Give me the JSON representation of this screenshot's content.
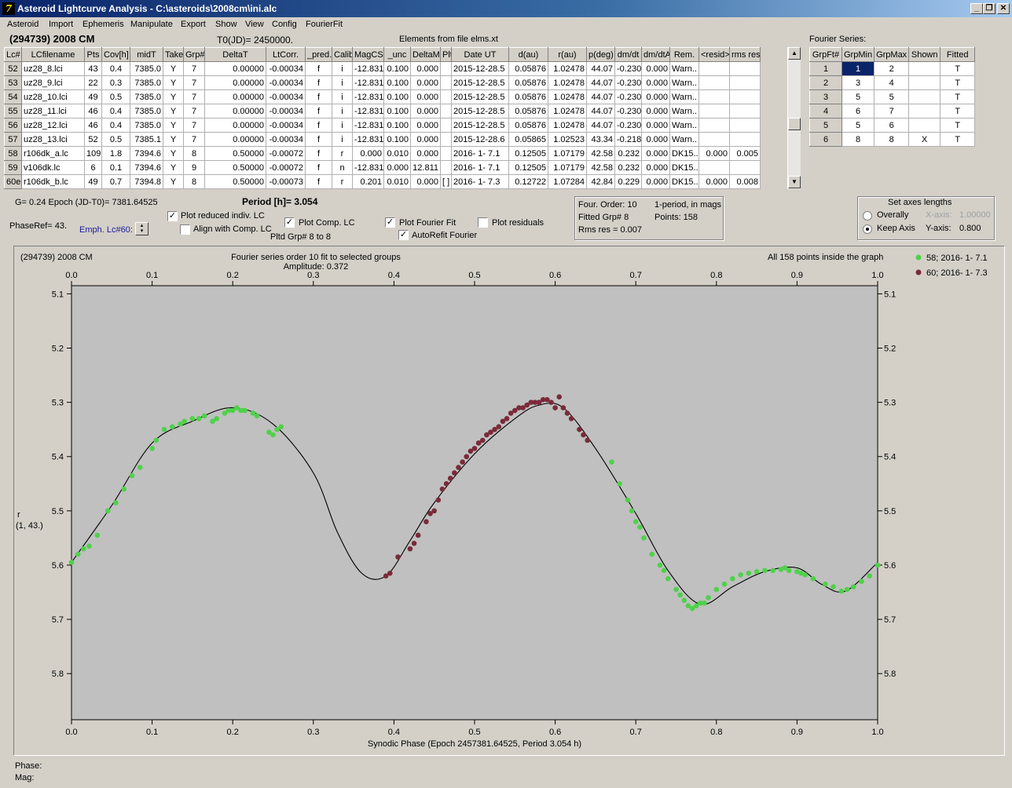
{
  "titlebar": {
    "title": "Asteroid Lightcurve Analysis - C:\\asteroids\\2008cm\\ini.alc",
    "min": "_",
    "max": "❐",
    "close": "✕"
  },
  "menu": [
    "Asteroid",
    "Import",
    "Ephemeris",
    "Manipulate",
    "Export",
    "Show",
    "View",
    "Config",
    "FourierFit"
  ],
  "header": {
    "asteroid": "(294739) 2008 CM",
    "t0": "T0(JD)= 2450000.",
    "elements": "Elements from file elms.xt",
    "fourier_series": "Fourier Series:"
  },
  "lc_table": {
    "columns": [
      "Lc#",
      "LCfilename",
      "Pts",
      "Cov[h]",
      "midT",
      "Take",
      "Grp#",
      "DeltaT",
      "LtCorr.",
      "_pred.",
      "Calib.",
      "MagCS",
      "_unc",
      "DeltaM",
      "Plt",
      "Date UT",
      "d(au)",
      "r(au)",
      "p(deg)",
      "dm/dt",
      "dm/dtA",
      "Rem.",
      "<resid>",
      "rms res"
    ],
    "rows": [
      [
        "52",
        "uz28_8.lci",
        "43",
        "0.4",
        "7385.0",
        "Y",
        "7",
        "0.00000",
        "-0.00034",
        "f",
        "i",
        "-12.831",
        "0.100",
        "0.000",
        "",
        "2015-12-28.5",
        "0.05876",
        "1.02478",
        "44.07",
        "-0.230",
        "0.000",
        "Warn..",
        "",
        ""
      ],
      [
        "53",
        "uz28_9.lci",
        "22",
        "0.3",
        "7385.0",
        "Y",
        "7",
        "0.00000",
        "-0.00034",
        "f",
        "i",
        "-12.831",
        "0.100",
        "0.000",
        "",
        "2015-12-28.5",
        "0.05876",
        "1.02478",
        "44.07",
        "-0.230",
        "0.000",
        "Warn..",
        "",
        ""
      ],
      [
        "54",
        "uz28_10.lci",
        "49",
        "0.5",
        "7385.0",
        "Y",
        "7",
        "0.00000",
        "-0.00034",
        "f",
        "i",
        "-12.831",
        "0.100",
        "0.000",
        "",
        "2015-12-28.5",
        "0.05876",
        "1.02478",
        "44.07",
        "-0.230",
        "0.000",
        "Warn..",
        "",
        ""
      ],
      [
        "55",
        "uz28_11.lci",
        "46",
        "0.4",
        "7385.0",
        "Y",
        "7",
        "0.00000",
        "-0.00034",
        "f",
        "i",
        "-12.831",
        "0.100",
        "0.000",
        "",
        "2015-12-28.5",
        "0.05876",
        "1.02478",
        "44.07",
        "-0.230",
        "0.000",
        "Warn..",
        "",
        ""
      ],
      [
        "56",
        "uz28_12.lci",
        "46",
        "0.4",
        "7385.0",
        "Y",
        "7",
        "0.00000",
        "-0.00034",
        "f",
        "i",
        "-12.831",
        "0.100",
        "0.000",
        "",
        "2015-12-28.5",
        "0.05876",
        "1.02478",
        "44.07",
        "-0.230",
        "0.000",
        "Warn..",
        "",
        ""
      ],
      [
        "57",
        "uz28_13.lci",
        "52",
        "0.5",
        "7385.1",
        "Y",
        "7",
        "0.00000",
        "-0.00034",
        "f",
        "i",
        "-12.831",
        "0.100",
        "0.000",
        "",
        "2015-12-28.6",
        "0.05865",
        "1.02523",
        "43.34",
        "-0.218",
        "0.000",
        "Warn..",
        "",
        ""
      ],
      [
        "58",
        "r106dk_a.lc",
        "109",
        "1.8",
        "7394.6",
        "Y",
        "8",
        "0.50000",
        "-0.00072",
        "f",
        "r",
        "0.000",
        "0.010",
        "0.000",
        "",
        "2016- 1- 7.1",
        "0.12505",
        "1.07179",
        "42.58",
        "0.232",
        "0.000",
        "DK15..",
        "0.000",
        "0.005"
      ],
      [
        "59",
        "v106dk.lc",
        "6",
        "0.1",
        "7394.6",
        "Y",
        "9",
        "0.50000",
        "-0.00072",
        "f",
        "n",
        "-12.831",
        "0.000",
        "12.811",
        "",
        "2016- 1- 7.1",
        "0.12505",
        "1.07179",
        "42.58",
        "0.232",
        "0.000",
        "DK15..",
        "",
        ""
      ],
      [
        "60e",
        "r106dk_b.lc",
        "49",
        "0.7",
        "7394.8",
        "Y",
        "8",
        "0.50000",
        "-0.00073",
        "f",
        "r",
        "0.201",
        "0.010",
        "0.000",
        "[ ]",
        "2016- 1- 7.3",
        "0.12722",
        "1.07284",
        "42.84",
        "0.229",
        "0.000",
        "DK15..",
        "0.000",
        "0.008"
      ]
    ]
  },
  "fourier_table": {
    "columns": [
      "GrpFt#",
      "GrpMin",
      "GrpMax",
      "Shown",
      "Fitted"
    ],
    "rows": [
      [
        "1",
        "1",
        "2",
        "",
        "T"
      ],
      [
        "2",
        "3",
        "4",
        "",
        "T"
      ],
      [
        "3",
        "5",
        "5",
        "",
        "T"
      ],
      [
        "4",
        "6",
        "7",
        "",
        "T"
      ],
      [
        "5",
        "5",
        "6",
        "",
        "T"
      ],
      [
        "6",
        "8",
        "8",
        "X",
        "T"
      ]
    ]
  },
  "controls": {
    "g_epoch": "G= 0.24   Epoch (JD-T0)= 7381.64525",
    "period": "Period [h]= 3.054",
    "phase_ref": "PhaseRef= 43.",
    "emph_lc": "Emph. Lc#60:",
    "plot_reduced": "Plot reduced indiv. LC",
    "align_comp": "Align with Comp. LC",
    "plot_comp": "Plot Comp. LC",
    "pltd_grp": "Pltd Grp#  8  to  8",
    "plot_fourier": "Plot Fourier Fit",
    "autorefit": "AutoRefit Fourier",
    "plot_residuals": "Plot residuals",
    "info_order": "Four. Order: 10",
    "info_period": "1-period, in mags",
    "info_fitted": "Fitted Grp# 8",
    "info_points": "Points: 158",
    "info_rms": "Rms res    = 0.007",
    "axes_title": "Set axes lengths",
    "overally": "Overally",
    "keep_axis": "Keep Axis",
    "xaxis_label": "X-axis:",
    "xaxis_value": "1.00000",
    "yaxis_label": "Y-axis:",
    "yaxis_value": "0.800",
    "check": "✓"
  },
  "plot": {
    "object": "(294739) 2008 CM",
    "title": "Fourier series order 10 fit to selected groups",
    "amplitude": "Amplitude: 0.372",
    "inside": "All 158 points inside the graph",
    "ylabel_1": "r",
    "ylabel_2": "(1, 43.)",
    "xlabel": "Synodic Phase (Epoch 2457381.64525, Period 3.054 h)",
    "bg_color": "#c0c0c0",
    "green": "#4fd14a",
    "maroon": "#7a2a3a"
  },
  "status": {
    "phase": "Phase:",
    "mag": "Mag:"
  },
  "chart_data": {
    "type": "scatter",
    "title": "Fourier series order 10 fit to selected groups",
    "xlabel": "Synodic Phase (Epoch 2457381.64525, Period 3.054 h)",
    "ylabel": "r",
    "xlim": [
      0.0,
      1.0
    ],
    "ylim": [
      5.1,
      5.9
    ],
    "y_inverted": true,
    "x_ticks": [
      "0.0",
      "0.1",
      "0.2",
      "0.3",
      "0.4",
      "0.5",
      "0.6",
      "0.7",
      "0.8",
      "0.9",
      "1.0"
    ],
    "y_ticks": [
      "5.1",
      "5.2",
      "5.3",
      "5.4",
      "5.5",
      "5.6",
      "5.7",
      "5.8"
    ],
    "legend_position": "top-right",
    "fit_curve": {
      "x": [
        0.0,
        0.05,
        0.1,
        0.15,
        0.2,
        0.25,
        0.3,
        0.33,
        0.36,
        0.39,
        0.42,
        0.45,
        0.5,
        0.55,
        0.58,
        0.61,
        0.65,
        0.7,
        0.74,
        0.78,
        0.82,
        0.86,
        0.9,
        0.93,
        0.96,
        1.0
      ],
      "y": [
        5.595,
        5.49,
        5.375,
        5.335,
        5.31,
        5.34,
        5.43,
        5.54,
        5.615,
        5.62,
        5.555,
        5.485,
        5.395,
        5.33,
        5.305,
        5.31,
        5.385,
        5.505,
        5.61,
        5.672,
        5.64,
        5.612,
        5.605,
        5.635,
        5.648,
        5.595
      ]
    },
    "series": [
      {
        "name": "58; 2016- 1- 7.1",
        "color": "#4fd14a",
        "x": [
          0.0,
          0.008,
          0.015,
          0.022,
          0.032,
          0.045,
          0.055,
          0.065,
          0.075,
          0.085,
          0.1,
          0.105,
          0.115,
          0.125,
          0.135,
          0.14,
          0.15,
          0.158,
          0.165,
          0.175,
          0.18,
          0.19,
          0.195,
          0.2,
          0.205,
          0.21,
          0.215,
          0.225,
          0.23,
          0.245,
          0.25,
          0.255,
          0.26,
          0.67,
          0.68,
          0.69,
          0.695,
          0.7,
          0.705,
          0.71,
          0.72,
          0.73,
          0.735,
          0.74,
          0.75,
          0.755,
          0.76,
          0.765,
          0.77,
          0.775,
          0.78,
          0.785,
          0.79,
          0.8,
          0.81,
          0.82,
          0.83,
          0.84,
          0.85,
          0.86,
          0.87,
          0.88,
          0.885,
          0.89,
          0.9,
          0.905,
          0.91,
          0.92,
          0.935,
          0.945,
          0.955,
          0.962,
          0.97,
          0.98,
          0.99,
          1.0
        ],
        "y": [
          5.595,
          5.58,
          5.57,
          5.565,
          5.545,
          5.5,
          5.485,
          5.46,
          5.435,
          5.42,
          5.385,
          5.37,
          5.35,
          5.345,
          5.34,
          5.335,
          5.33,
          5.33,
          5.325,
          5.335,
          5.33,
          5.32,
          5.315,
          5.315,
          5.31,
          5.315,
          5.315,
          5.32,
          5.325,
          5.355,
          5.36,
          5.35,
          5.345,
          5.41,
          5.45,
          5.48,
          5.5,
          5.52,
          5.53,
          5.55,
          5.58,
          5.6,
          5.61,
          5.625,
          5.645,
          5.655,
          5.665,
          5.675,
          5.68,
          5.675,
          5.67,
          5.67,
          5.66,
          5.645,
          5.635,
          5.625,
          5.618,
          5.615,
          5.612,
          5.61,
          5.61,
          5.608,
          5.605,
          5.61,
          5.612,
          5.615,
          5.618,
          5.625,
          5.635,
          5.64,
          5.648,
          5.645,
          5.64,
          5.63,
          5.62,
          5.6
        ]
      },
      {
        "name": "60; 2016- 1- 7.3",
        "color": "#7a2a3a",
        "x": [
          0.39,
          0.395,
          0.405,
          0.42,
          0.425,
          0.43,
          0.44,
          0.445,
          0.45,
          0.455,
          0.46,
          0.465,
          0.47,
          0.475,
          0.48,
          0.485,
          0.49,
          0.495,
          0.5,
          0.505,
          0.51,
          0.515,
          0.52,
          0.525,
          0.53,
          0.535,
          0.54,
          0.545,
          0.55,
          0.555,
          0.56,
          0.565,
          0.57,
          0.575,
          0.58,
          0.585,
          0.59,
          0.595,
          0.6,
          0.605,
          0.61,
          0.615,
          0.62,
          0.63,
          0.635,
          0.64
        ],
        "y": [
          5.62,
          5.615,
          5.585,
          5.57,
          5.56,
          5.545,
          5.52,
          5.505,
          5.5,
          5.48,
          5.46,
          5.45,
          5.44,
          5.43,
          5.42,
          5.41,
          5.4,
          5.39,
          5.385,
          5.375,
          5.37,
          5.36,
          5.355,
          5.35,
          5.345,
          5.335,
          5.33,
          5.32,
          5.315,
          5.31,
          5.31,
          5.305,
          5.3,
          5.3,
          5.3,
          5.295,
          5.295,
          5.3,
          5.31,
          5.29,
          5.31,
          5.32,
          5.33,
          5.35,
          5.36,
          5.37
        ]
      }
    ]
  }
}
